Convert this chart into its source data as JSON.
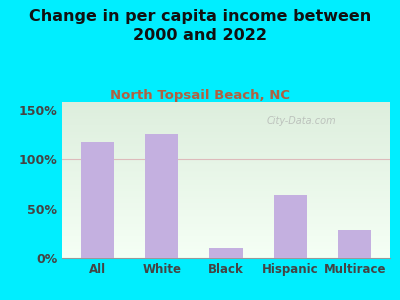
{
  "title": "Change in per capita income between\n2000 and 2022",
  "subtitle": "North Topsail Beach, NC",
  "categories": [
    "All",
    "White",
    "Black",
    "Hispanic",
    "Multirace"
  ],
  "values": [
    117,
    126,
    10,
    64,
    28
  ],
  "bar_color": "#c4b0e0",
  "title_fontsize": 11.5,
  "subtitle_fontsize": 9.5,
  "subtitle_color": "#b06040",
  "title_color": "#111111",
  "bg_outer": "#00eeff",
  "bg_plot_top": "#ddeedd",
  "bg_plot_bottom": "#f5fff5",
  "yticks": [
    0,
    50,
    100,
    150
  ],
  "ylim": [
    0,
    158
  ],
  "watermark": "City-Data.com",
  "grid_color": "#ddbbbb",
  "tick_color": "#444444"
}
